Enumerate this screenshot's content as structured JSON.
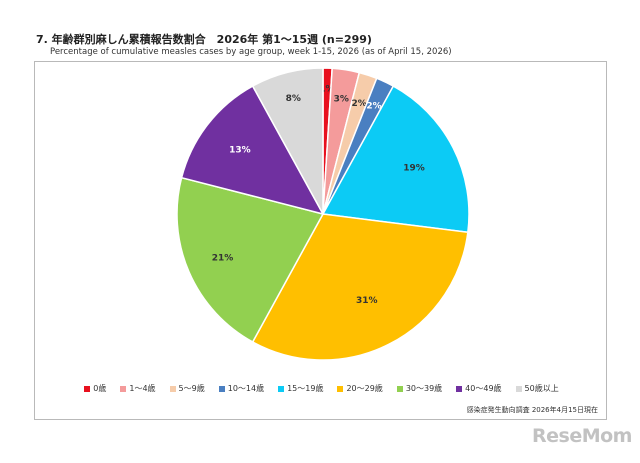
{
  "title": "7. 年齢群別麻しん累積報告数割合　2026年 第1～15週 (n=299)",
  "subtitle": "Percentage of cumulative measles cases by age group, week 1-15, 2026 (as of April 15, 2026)",
  "source": "感染症発生動向調査 2026年4月15日現在",
  "brand": "ReseMom",
  "chart_data": {
    "type": "pie",
    "title": "7. 年齢群別麻しん累積報告数割合　2026年 第1～15週 (n=299)",
    "legend_position": "bottom",
    "slices": [
      {
        "name": "0歳",
        "value": 1,
        "label": "1%",
        "color": "#e8101e"
      },
      {
        "name": "1～4歳",
        "value": 3,
        "label": "3%",
        "color": "#f49b9b"
      },
      {
        "name": "5～9歳",
        "value": 2,
        "label": "2%",
        "color": "#f6ccaa"
      },
      {
        "name": "10～14歳",
        "value": 2,
        "label": "2%",
        "color": "#4a7fc1"
      },
      {
        "name": "15～19歳",
        "value": 19,
        "label": "19%",
        "color": "#0ccbf5"
      },
      {
        "name": "20～29歳",
        "value": 31,
        "label": "31%",
        "color": "#ffbf00"
      },
      {
        "name": "30～39歳",
        "value": 21,
        "label": "21%",
        "color": "#92d050"
      },
      {
        "name": "40～49歳",
        "value": 13,
        "label": "13%",
        "color": "#7030a0"
      },
      {
        "name": "50歳以上",
        "value": 8,
        "label": "8%",
        "color": "#d9d9d9"
      }
    ]
  }
}
